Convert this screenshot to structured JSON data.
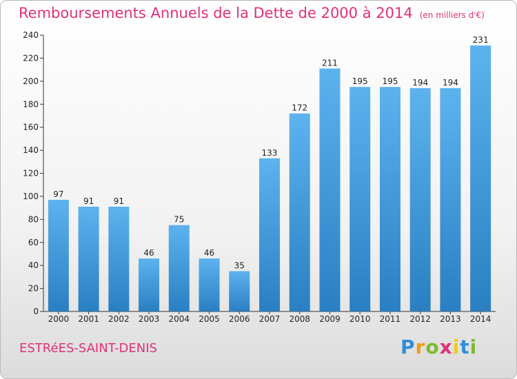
{
  "header": {
    "title": "Remboursements Annuels de la Dette de 2000 à 2014",
    "unit": "(en milliers d'€)"
  },
  "footer": {
    "commune": "ESTRéES-SAINT-DENIS",
    "logo": [
      "P",
      "r",
      "o",
      "x",
      "i",
      "t",
      "i"
    ]
  },
  "colors": {
    "title": "#e0307a",
    "bar_top": "#5cb3ee",
    "bar_bottom": "#2a7fc2",
    "axis": "#333333"
  },
  "chart_data": {
    "type": "bar",
    "categories": [
      "2000",
      "2001",
      "2002",
      "2003",
      "2004",
      "2005",
      "2006",
      "2007",
      "2008",
      "2009",
      "2010",
      "2011",
      "2012",
      "2013",
      "2014"
    ],
    "values": [
      97,
      91,
      91,
      46,
      75,
      46,
      35,
      133,
      172,
      211,
      195,
      195,
      194,
      194,
      231
    ],
    "ylim": [
      0,
      240
    ],
    "yticks": [
      0,
      20,
      40,
      60,
      80,
      100,
      120,
      140,
      160,
      180,
      200,
      220,
      240
    ],
    "grid": false,
    "legend": "none"
  }
}
